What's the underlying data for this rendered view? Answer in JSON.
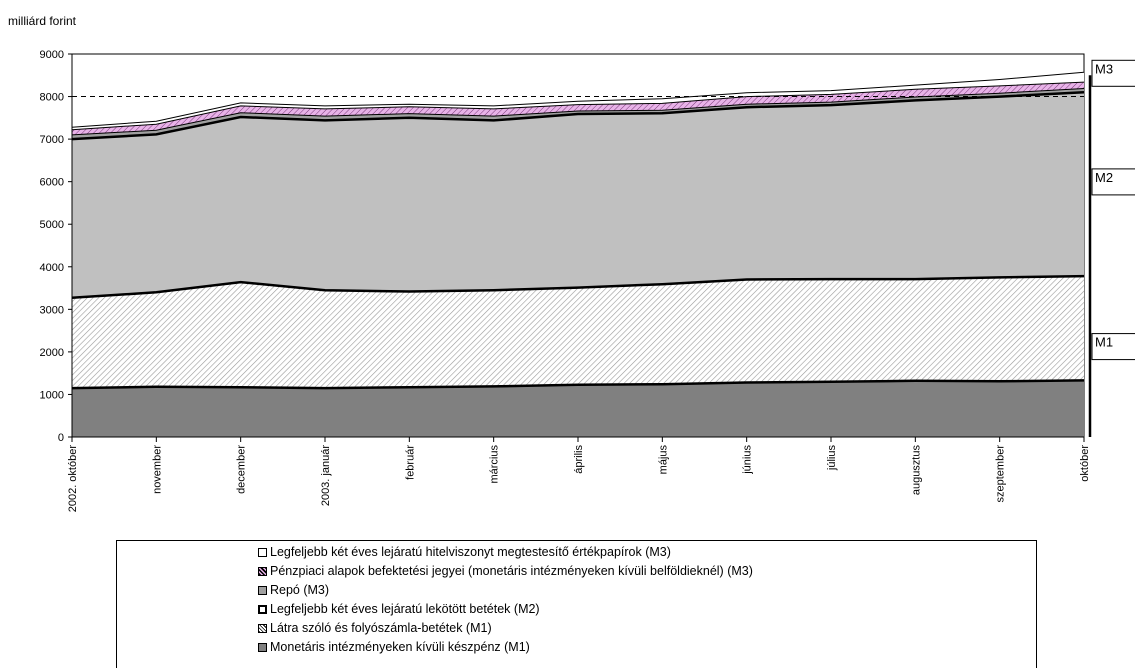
{
  "chart_data": {
    "type": "area",
    "stacked": true,
    "ylabel": "milliárd forint",
    "ylim": [
      0,
      9000
    ],
    "yticks": [
      0,
      1000,
      2000,
      3000,
      4000,
      5000,
      6000,
      7000,
      8000,
      9000
    ],
    "categories": [
      "2002. október",
      "november",
      "december",
      "2003. január",
      "február",
      "március",
      "április",
      "május",
      "június",
      "július",
      "augusztus",
      "szeptember",
      "október"
    ],
    "series": [
      {
        "name": "Monetáris intézményeken kívüli készpénz (M1)",
        "color": "#808080",
        "values": [
          1150,
          1180,
          1170,
          1150,
          1170,
          1190,
          1230,
          1240,
          1280,
          1300,
          1320,
          1310,
          1330
        ]
      },
      {
        "name": "Látra szóló és folyószámla-betétek (M1)",
        "color": "#d8d8d8",
        "values": [
          2120,
          2220,
          2470,
          2300,
          2250,
          2260,
          2280,
          2350,
          2420,
          2410,
          2390,
          2440,
          2450
        ]
      },
      {
        "name": "Legfeljebb két éves lejáratú lekötött betétek (M2)",
        "color": "#c0c0c0",
        "values": [
          3730,
          3710,
          3880,
          3990,
          4080,
          3990,
          4080,
          4020,
          4050,
          4090,
          4200,
          4250,
          4320
        ]
      },
      {
        "name": "Repó (M3)",
        "color": "#a0a0a0",
        "values": [
          100,
          100,
          100,
          100,
          100,
          100,
          70,
          70,
          70,
          70,
          80,
          80,
          90
        ]
      },
      {
        "name": "Pénzpiaci alapok befektetési jegyei (monetáris intézményeken kívüli belföldieknél) (M3)",
        "color": "#e8b3e8",
        "values": [
          120,
          140,
          160,
          170,
          160,
          170,
          150,
          160,
          180,
          180,
          180,
          170,
          150
        ]
      },
      {
        "name": "Legfeljebb két éves lejáratú hitelviszonyt megtestesítő értékpapírok (M3)",
        "color": "#ffffff",
        "values": [
          60,
          70,
          70,
          70,
          60,
          70,
          80,
          110,
          90,
          90,
          100,
          150,
          230
        ]
      }
    ],
    "reference_line": {
      "value": 8000,
      "style": "dashed"
    },
    "aggregate_labels": [
      "M3",
      "M2",
      "M1"
    ],
    "grid": false,
    "legend_position": "bottom"
  },
  "legend_items": [
    {
      "label": "Legfeljebb két éves lejáratú hitelviszonyt megtestesítő értékpapírok (M3)",
      "swatch": "white"
    },
    {
      "label": "Pénzpiaci alapok befektetési jegyei (monetáris intézményeken kívüli belföldieknél) (M3)",
      "swatch": "pink-hatch"
    },
    {
      "label": "Repó (M3)",
      "swatch": "gray"
    },
    {
      "label": "Legfeljebb két éves lejáratú lekötött betétek (M2)",
      "swatch": "thick-border"
    },
    {
      "label": "Látra szóló és folyószámla-betétek (M1)",
      "swatch": "dotted"
    },
    {
      "label": "Monetáris intézményeken kívüli készpénz (M1)",
      "swatch": "dark-gray"
    }
  ]
}
